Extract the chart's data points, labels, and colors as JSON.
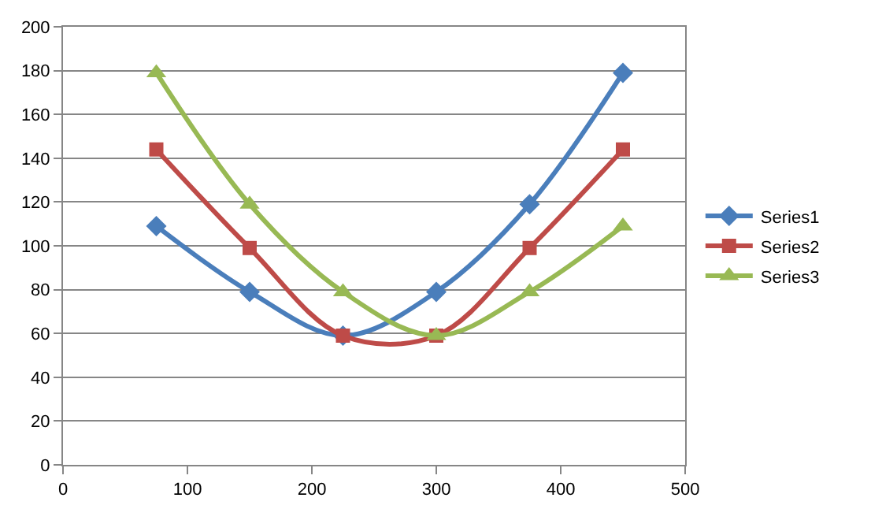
{
  "chart_data": {
    "type": "line",
    "x": [
      75,
      150,
      225,
      300,
      375,
      450
    ],
    "series": [
      {
        "name": "Series1",
        "color": "#4a7ebb",
        "marker": "diamond",
        "values": [
          109,
          79,
          59,
          79,
          119,
          179
        ]
      },
      {
        "name": "Series2",
        "color": "#be4b48",
        "marker": "square",
        "values": [
          144,
          99,
          59,
          59,
          99,
          144
        ]
      },
      {
        "name": "Series3",
        "color": "#98b954",
        "marker": "triangle",
        "values": [
          179,
          119,
          79,
          59,
          79,
          109
        ]
      }
    ],
    "xlim": [
      0,
      500
    ],
    "xticks": [
      0,
      100,
      200,
      300,
      400,
      500
    ],
    "ylim": [
      0,
      200
    ],
    "yticks": [
      0,
      20,
      40,
      60,
      80,
      100,
      120,
      140,
      160,
      180,
      200
    ],
    "grid": "y",
    "legend": "right",
    "line_style": "solid"
  }
}
